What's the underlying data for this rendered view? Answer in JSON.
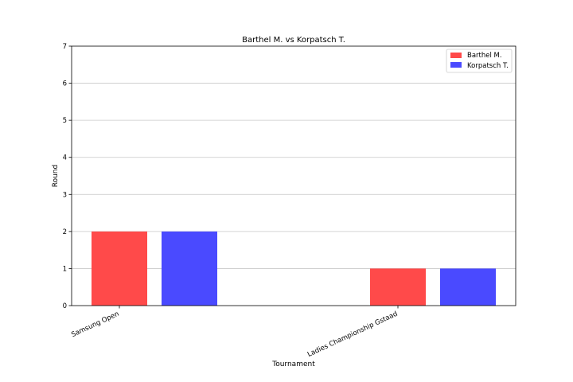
{
  "chart_data": {
    "type": "bar",
    "title": "Barthel M.  vs  Korpatsch T.",
    "xlabel": "Tournament",
    "ylabel": "Round",
    "categories": [
      "Samsung Open",
      "Ladies Championship Gstaad"
    ],
    "series": [
      {
        "name": "Barthel M.",
        "values": [
          2,
          1
        ],
        "color": "#ff4a4a"
      },
      {
        "name": "Korpatsch T.",
        "values": [
          2,
          1
        ],
        "color": "#4a4aff"
      }
    ],
    "ylim": [
      0,
      7
    ],
    "yticks": [
      0,
      1,
      2,
      3,
      4,
      5,
      6,
      7
    ],
    "grid": true,
    "legend": "top-right"
  }
}
